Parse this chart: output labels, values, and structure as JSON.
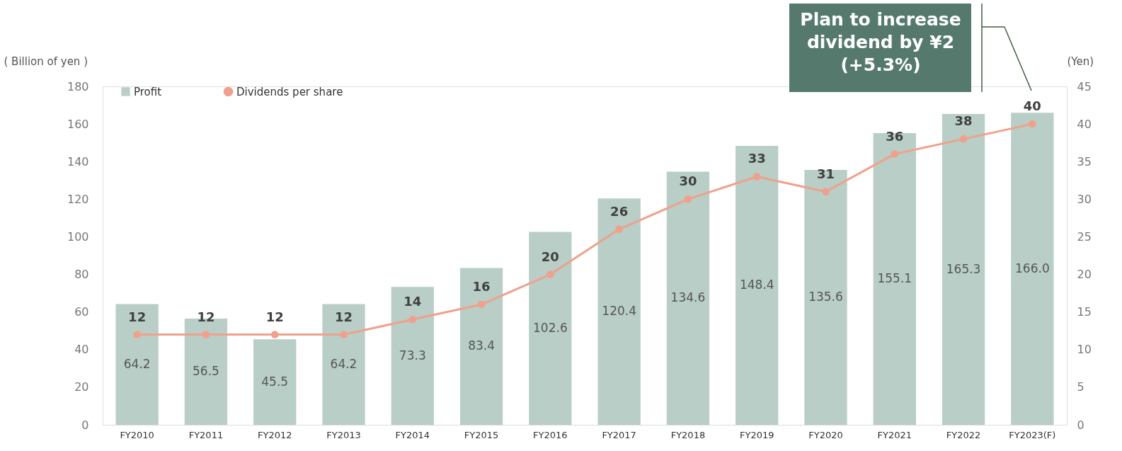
{
  "chart_data": {
    "type": "bar",
    "categories": [
      "FY2010",
      "FY2011",
      "FY2012",
      "FY2013",
      "FY2014",
      "FY2015",
      "FY2016",
      "FY2017",
      "FY2018",
      "FY2019",
      "FY2020",
      "FY2021",
      "FY2022",
      "FY2023(F)"
    ],
    "series": [
      {
        "name": "Profit",
        "color": "#b8cec7",
        "values": [
          64.2,
          56.5,
          45.5,
          64.2,
          73.3,
          83.4,
          102.6,
          120.4,
          134.6,
          148.4,
          135.6,
          155.1,
          165.3,
          166.0
        ],
        "value_labels": [
          "64.2",
          "56.5",
          "45.5",
          "64.2",
          "73.3",
          "83.4",
          "102.6",
          "120.4",
          "134.6",
          "148.4",
          "135.6",
          "155.1",
          "165.3",
          "166.0"
        ]
      },
      {
        "name": "Dividends per share",
        "type": "line",
        "axis": "y2",
        "color": "#f0a18b",
        "marker": "circle",
        "values": [
          12,
          12,
          12,
          12,
          14,
          16,
          20,
          26,
          30,
          33,
          31,
          36,
          38,
          40
        ]
      }
    ],
    "ylabel": "( Billion of yen )",
    "y2label": "(Yen)",
    "ylim": [
      0,
      180
    ],
    "yticks": [
      0,
      20,
      40,
      60,
      80,
      100,
      120,
      140,
      160,
      180
    ],
    "y2lim": [
      0,
      45
    ],
    "y2ticks": [
      0,
      5,
      10,
      15,
      20,
      25,
      30,
      35,
      40,
      45
    ],
    "data_labels": true,
    "legend": "top left",
    "grid": false,
    "annotations": [
      "Plan to increase\ndividend by ¥2\n(+5.3%)"
    ]
  }
}
